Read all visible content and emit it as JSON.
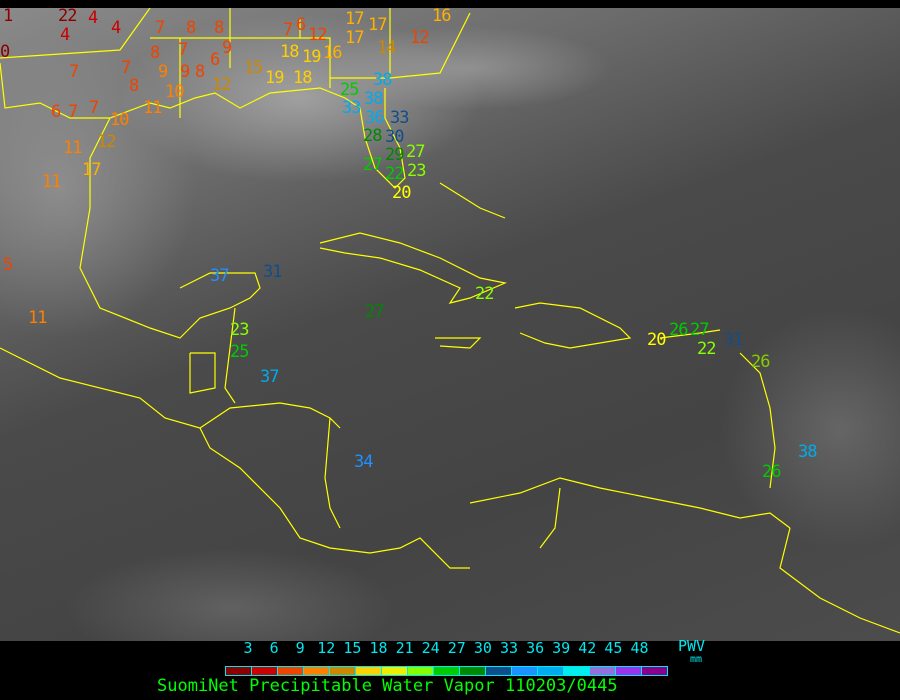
{
  "title": "SuomiNet Precipitable Water Vapor 110203/0445",
  "legend": {
    "unit_top": "PWV",
    "unit_bottom": "mm",
    "ticks": [
      "3",
      "6",
      "9",
      "12",
      "15",
      "18",
      "21",
      "24",
      "27",
      "30",
      "33",
      "36",
      "39",
      "42",
      "45",
      "48"
    ],
    "colors": [
      "#8b0000",
      "#cc0000",
      "#ee4400",
      "#ff8000",
      "#cc8800",
      "#ffd000",
      "#eeee00",
      "#88ff00",
      "#00cc00",
      "#008800",
      "#104e8b",
      "#1e90ff",
      "#00aaee",
      "#00eeee",
      "#9370db",
      "#9a32ee",
      "#8b008b"
    ]
  },
  "coastline_color": "#ffff00",
  "stations": [
    {
      "value": "1",
      "color": "#8b0000"
    },
    {
      "value": "22",
      "color": "#8b0000"
    },
    {
      "value": "4",
      "color": "#cc0000"
    },
    {
      "value": "4",
      "color": "#cc0000"
    },
    {
      "value": "4",
      "color": "#cc0000"
    },
    {
      "value": "0",
      "color": "#8b0000"
    },
    {
      "value": "7",
      "color": "#ee4400"
    },
    {
      "value": "8",
      "color": "#ee4400"
    },
    {
      "value": "8",
      "color": "#ee4400"
    },
    {
      "value": "7",
      "color": "#ee4400"
    },
    {
      "value": "9",
      "color": "#ee4400"
    },
    {
      "value": "8",
      "color": "#ee4400"
    },
    {
      "value": "7",
      "color": "#ee4400"
    },
    {
      "value": "7",
      "color": "#ee4400"
    },
    {
      "value": "9",
      "color": "#ff8000"
    },
    {
      "value": "9",
      "color": "#ee4400"
    },
    {
      "value": "8",
      "color": "#ee4400"
    },
    {
      "value": "6",
      "color": "#ee4400"
    },
    {
      "value": "8",
      "color": "#ee4400"
    },
    {
      "value": "10",
      "color": "#ff8000"
    },
    {
      "value": "12",
      "color": "#cc8800"
    },
    {
      "value": "15",
      "color": "#cc8800"
    },
    {
      "value": "19",
      "color": "#ffd000"
    },
    {
      "value": "18",
      "color": "#ffd000"
    },
    {
      "value": "6",
      "color": "#ee4400"
    },
    {
      "value": "7",
      "color": "#ee4400"
    },
    {
      "value": "7",
      "color": "#ee4400"
    },
    {
      "value": "10",
      "color": "#ff8000"
    },
    {
      "value": "11",
      "color": "#ff8000"
    },
    {
      "value": "12",
      "color": "#cc8800"
    },
    {
      "value": "11",
      "color": "#ff8000"
    },
    {
      "value": "17",
      "color": "#ffb000"
    },
    {
      "value": "11",
      "color": "#ff8000"
    },
    {
      "value": "7",
      "color": "#ee4400"
    },
    {
      "value": "6",
      "color": "#ee4400"
    },
    {
      "value": "12",
      "color": "#ee4400"
    },
    {
      "value": "18",
      "color": "#ffd000"
    },
    {
      "value": "19",
      "color": "#ffd000"
    },
    {
      "value": "16",
      "color": "#ffb000"
    },
    {
      "value": "17",
      "color": "#ffb000"
    },
    {
      "value": "17",
      "color": "#ffb000"
    },
    {
      "value": "17",
      "color": "#ffb000"
    },
    {
      "value": "14",
      "color": "#cc8800"
    },
    {
      "value": "12",
      "color": "#ee4400"
    },
    {
      "value": "16",
      "color": "#ffb000"
    },
    {
      "value": "5",
      "color": "#ee4400"
    },
    {
      "value": "11",
      "color": "#ff8000"
    },
    {
      "value": "25",
      "color": "#00cc00"
    },
    {
      "value": "38",
      "color": "#00aaee"
    },
    {
      "value": "33",
      "color": "#00aaee"
    },
    {
      "value": "38",
      "color": "#00aaee"
    },
    {
      "value": "36",
      "color": "#00aaee"
    },
    {
      "value": "33",
      "color": "#104e8b"
    },
    {
      "value": "30",
      "color": "#104e8b"
    },
    {
      "value": "28",
      "color": "#008800"
    },
    {
      "value": "29",
      "color": "#008800"
    },
    {
      "value": "27",
      "color": "#88ff00"
    },
    {
      "value": "27",
      "color": "#00cc00"
    },
    {
      "value": "22",
      "color": "#00cc00"
    },
    {
      "value": "23",
      "color": "#88ff00"
    },
    {
      "value": "20",
      "color": "#ffff00"
    },
    {
      "value": "37",
      "color": "#1e90ff"
    },
    {
      "value": "31",
      "color": "#104e8b"
    },
    {
      "value": "27",
      "color": "#008800"
    },
    {
      "value": "22",
      "color": "#88ff00"
    },
    {
      "value": "23",
      "color": "#88ff00"
    },
    {
      "value": "25",
      "color": "#00cc00"
    },
    {
      "value": "37",
      "color": "#00aaee"
    },
    {
      "value": "34",
      "color": "#1e90ff"
    },
    {
      "value": "20",
      "color": "#ffff00"
    },
    {
      "value": "26",
      "color": "#00cc00"
    },
    {
      "value": "27",
      "color": "#00cc00"
    },
    {
      "value": "22",
      "color": "#88ff00"
    },
    {
      "value": "31",
      "color": "#104e8b"
    },
    {
      "value": "26",
      "color": "#88cc00"
    },
    {
      "value": "38",
      "color": "#00aaee"
    },
    {
      "value": "26",
      "color": "#00cc00"
    }
  ]
}
